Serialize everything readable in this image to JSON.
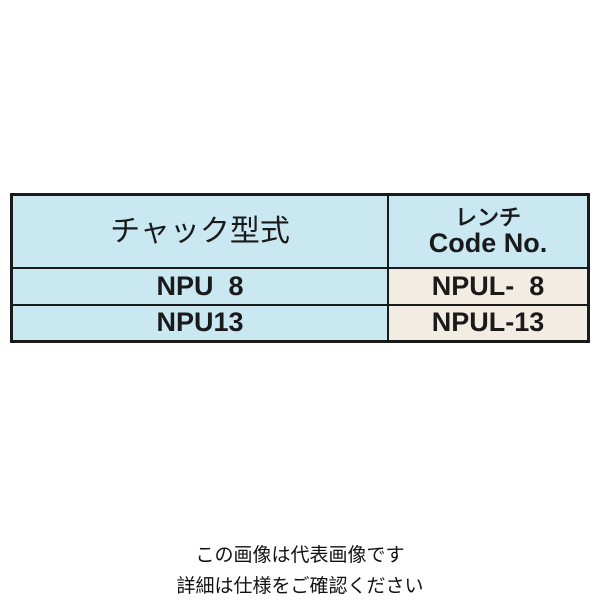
{
  "table": {
    "headers": [
      "チャック型式",
      "レンチ",
      "Code No."
    ],
    "rows": [
      {
        "chuck_model": "NPU  8",
        "wrench_code": "NPUL-  8"
      },
      {
        "chuck_model": "NPU13",
        "wrench_code": "NPUL-13"
      }
    ]
  },
  "caption": {
    "line1": "この画像は代表画像です",
    "line2": "詳細は仕様をご確認ください"
  },
  "colors": {
    "header_bg": "#c9e8f2",
    "code_bg": "#f3ece2",
    "border": "#1a1a1a"
  }
}
